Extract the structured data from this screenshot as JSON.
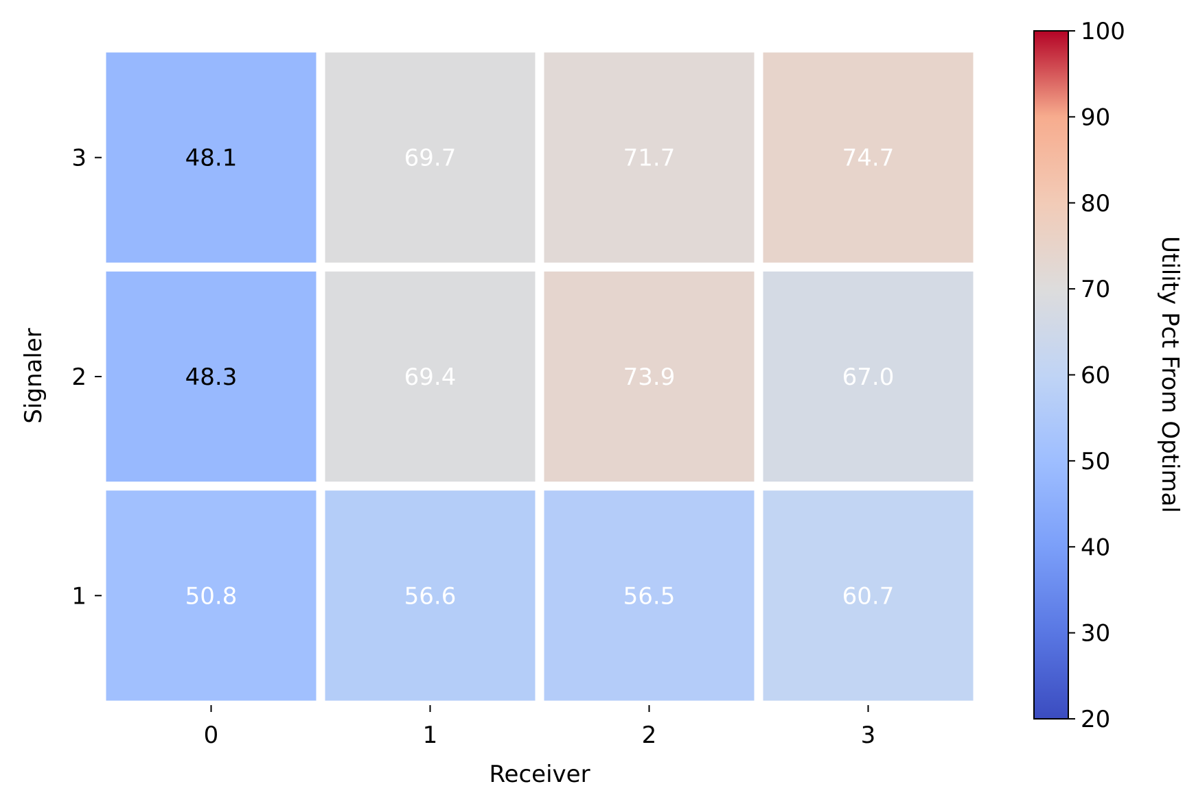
{
  "chart_data": {
    "type": "heatmap",
    "x_label": "Receiver",
    "y_label": "Signaler",
    "x_categories": [
      "0",
      "1",
      "2",
      "3"
    ],
    "y_categories": [
      "3",
      "2",
      "1"
    ],
    "values": [
      [
        48.1,
        69.7,
        71.7,
        74.7
      ],
      [
        48.3,
        69.4,
        73.9,
        67.0
      ],
      [
        50.8,
        56.6,
        56.5,
        60.7
      ]
    ],
    "value_labels": [
      [
        "48.1",
        "69.7",
        "71.7",
        "74.7"
      ],
      [
        "48.3",
        "69.4",
        "73.9",
        "67.0"
      ],
      [
        "50.8",
        "56.6",
        "56.5",
        "60.7"
      ]
    ],
    "colormap": "coolwarm",
    "colorbar": {
      "label": "Utility Pct From Optimal",
      "range": [
        20,
        100
      ],
      "ticks": [
        "20",
        "30",
        "40",
        "50",
        "60",
        "70",
        "80",
        "90",
        "100"
      ],
      "tick_values": [
        20,
        30,
        40,
        50,
        60,
        70,
        80,
        90,
        100
      ],
      "stops": [
        {
          "v": 0.0,
          "color": "#3b4cc0"
        },
        {
          "v": 0.125,
          "color": "#5977e3"
        },
        {
          "v": 0.25,
          "color": "#7b9ff9"
        },
        {
          "v": 0.375,
          "color": "#9ebeff"
        },
        {
          "v": 0.5,
          "color": "#c0d4f5"
        },
        {
          "v": 0.625,
          "color": "#dddcdc"
        },
        {
          "v": 0.75,
          "color": "#f2cbb7"
        },
        {
          "v": 0.875,
          "color": "#f7ac8e"
        },
        {
          "v": 1.0,
          "color": "#b40426"
        }
      ]
    },
    "annotation_colors": {
      "dark": "#000000",
      "light": "#ffffff"
    },
    "grid": false
  }
}
